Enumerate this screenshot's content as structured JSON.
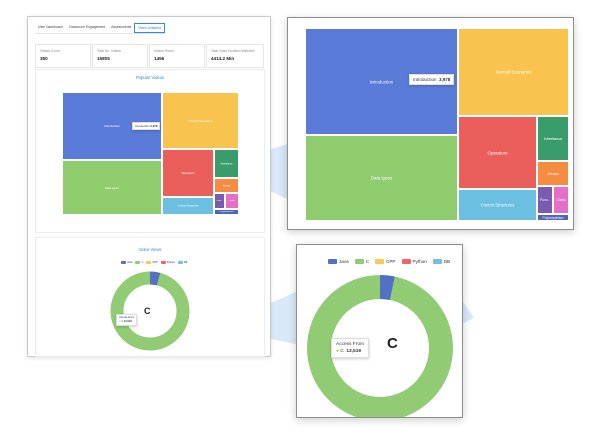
{
  "tabs": [
    "User Dashboard",
    "Classroom Engagement",
    "Assessments",
    "Video Analytics"
  ],
  "active_tab": 3,
  "stats": [
    {
      "label": "Videos Count",
      "value": "350"
    },
    {
      "label": "Total No. Videos",
      "value": "15805"
    },
    {
      "label": "Videos Hours",
      "value": "1456"
    },
    {
      "label": "Total Video Duration Watched",
      "value": "4414.2 Min"
    }
  ],
  "popular_videos": {
    "title": "Popular Videos",
    "tiles": [
      {
        "label": "Introduction",
        "color": "#5b7bd9"
      },
      {
        "label": "Data types",
        "color": "#8fcc6d"
      },
      {
        "label": "Normal Scenarios",
        "color": "#f8c44f"
      },
      {
        "label": "Operators",
        "color": "#ea5f5c"
      },
      {
        "label": "Control Structures",
        "color": "#6bbfe1"
      },
      {
        "label": "Inheritance",
        "color": "#3b9c6b"
      },
      {
        "label": "Arrays",
        "color": "#f48c42"
      },
      {
        "label": "Func..",
        "color": "#7a5bb0"
      },
      {
        "label": "Class",
        "color": "#e46fc9"
      },
      {
        "label": "Polymorphism",
        "color": "#5463bd"
      }
    ],
    "tooltip": {
      "label": "Introduction",
      "value": "3,978"
    }
  },
  "video_views": {
    "title": "Video Views",
    "legend": [
      {
        "label": "Java",
        "color": "#5470c6"
      },
      {
        "label": "C",
        "color": "#91cc75"
      },
      {
        "label": "CPP",
        "color": "#fac858"
      },
      {
        "label": "Python",
        "color": "#ee6666"
      },
      {
        "label": "DB",
        "color": "#73c0de"
      }
    ],
    "center_label": "C",
    "tooltip": {
      "title": "Access From",
      "series": "C",
      "value": "13,519"
    },
    "colors": {
      "main": "#91cc75",
      "java": "#5470c6"
    }
  },
  "chart_data": [
    {
      "type": "treemap",
      "title": "Popular Videos",
      "nodes": [
        {
          "name": "Introduction",
          "value": 3978
        },
        {
          "name": "Data types"
        },
        {
          "name": "Normal Scenarios"
        },
        {
          "name": "Operators"
        },
        {
          "name": "Control Structures"
        },
        {
          "name": "Inheritance"
        },
        {
          "name": "Arrays"
        },
        {
          "name": "Func.."
        },
        {
          "name": "Class"
        },
        {
          "name": "Polymorphism"
        }
      ]
    },
    {
      "type": "pie",
      "title": "Video Views",
      "labels": [
        "Java",
        "C",
        "CPP",
        "Python",
        "DB"
      ],
      "values": [
        445,
        13519,
        0,
        0,
        0
      ]
    }
  ]
}
